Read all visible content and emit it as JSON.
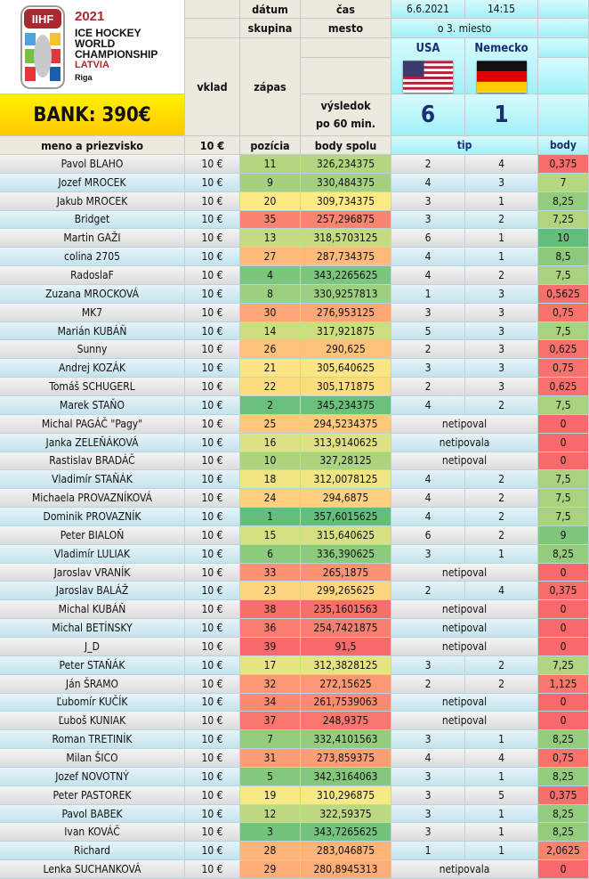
{
  "header": {
    "year": "2021",
    "event_lines": [
      "ICE HOCKEY",
      "WORLD",
      "CHAMPIONSHIP"
    ],
    "country": "LATVIA",
    "city": "Riga",
    "logo_text": "IIHF",
    "bank": "BANK: 390€",
    "datum_label": "dátum",
    "cas_label": "čas",
    "skupina_label": "skupina",
    "mesto_label": "mesto",
    "vklad_label": "vklad",
    "zapas_label": "zápas",
    "vysledok_label": "výsledok",
    "vysledok_label2": "po 60 min.",
    "date": "6.6.2021",
    "time": "14:15",
    "group": "o 3. miesto",
    "team1": "USA",
    "team2": "Nemecko",
    "score1": "6",
    "score2": "1"
  },
  "columns": {
    "name": "meno a priezvisko",
    "vklad": "10 €",
    "pozicia": "pozícia",
    "body_spolu": "body spolu",
    "tip": "tip",
    "body": "body"
  },
  "colors": {
    "green": "#63be7b",
    "yellow": "#ffeb84",
    "red": "#f8696b",
    "header_blue": "#1a2f6e"
  },
  "rows": [
    [
      "Pavol BLAHO",
      "10 €",
      "11",
      "326,234375",
      "2",
      "4",
      "0,375"
    ],
    [
      "Jozef MROCEK",
      "10 €",
      "9",
      "330,484375",
      "4",
      "3",
      "7"
    ],
    [
      "Jakub MROCEK",
      "10 €",
      "20",
      "309,734375",
      "3",
      "1",
      "8,25"
    ],
    [
      "Bridget",
      "10 €",
      "35",
      "257,296875",
      "3",
      "2",
      "7,25"
    ],
    [
      "Martin GAŽI",
      "10 €",
      "13",
      "318,5703125",
      "6",
      "1",
      "10"
    ],
    [
      "colina 2705",
      "10 €",
      "27",
      "287,734375",
      "4",
      "1",
      "8,5"
    ],
    [
      "RadoslaF",
      "10 €",
      "4",
      "343,2265625",
      "4",
      "2",
      "7,5"
    ],
    [
      "Zuzana MROCKOVÁ",
      "10 €",
      "8",
      "330,9257813",
      "1",
      "3",
      "0,5625"
    ],
    [
      "MK7",
      "10 €",
      "30",
      "276,953125",
      "3",
      "3",
      "0,75"
    ],
    [
      "Marián KUBÁŇ",
      "10 €",
      "14",
      "317,921875",
      "5",
      "3",
      "7,5"
    ],
    [
      "Sunny",
      "10 €",
      "26",
      "290,625",
      "2",
      "3",
      "0,625"
    ],
    [
      "Andrej KOZÁK",
      "10 €",
      "21",
      "305,640625",
      "3",
      "3",
      "0,75"
    ],
    [
      "Tomáš SCHUGERL",
      "10 €",
      "22",
      "305,171875",
      "2",
      "3",
      "0,625"
    ],
    [
      "Marek STAŇO",
      "10 €",
      "2",
      "345,234375",
      "4",
      "2",
      "7,5"
    ],
    [
      "Michal PAGÁČ \"Pagy\"",
      "10 €",
      "25",
      "294,5234375",
      "netipoval",
      "",
      "0"
    ],
    [
      "Janka ZELEŇÁKOVÁ",
      "10 €",
      "16",
      "313,9140625",
      "netipovala",
      "",
      "0"
    ],
    [
      "Rastislav BRADÁČ",
      "10 €",
      "10",
      "327,28125",
      "netipoval",
      "",
      "0"
    ],
    [
      "Vladimír STAŇÁK",
      "10 €",
      "18",
      "312,0078125",
      "4",
      "2",
      "7,5"
    ],
    [
      "Michaela PROVAZNÍKOVÁ",
      "10 €",
      "24",
      "294,6875",
      "4",
      "2",
      "7,5"
    ],
    [
      "Dominik PROVAZNÍK",
      "10 €",
      "1",
      "357,6015625",
      "4",
      "2",
      "7,5"
    ],
    [
      "Peter BIALOŇ",
      "10 €",
      "15",
      "315,640625",
      "6",
      "2",
      "9"
    ],
    [
      "Vladimír LULIAK",
      "10 €",
      "6",
      "336,390625",
      "3",
      "1",
      "8,25"
    ],
    [
      "Jaroslav VRANÍK",
      "10 €",
      "33",
      "265,1875",
      "netipoval",
      "",
      "0"
    ],
    [
      "Jaroslav BALÁŽ",
      "10 €",
      "23",
      "299,265625",
      "2",
      "4",
      "0,375"
    ],
    [
      "Michal KUBÁŇ",
      "10 €",
      "38",
      "235,1601563",
      "netipoval",
      "",
      "0"
    ],
    [
      "Michal BETÍNSKY",
      "10 €",
      "36",
      "254,7421875",
      "netipoval",
      "",
      "0"
    ],
    [
      "J_D",
      "10 €",
      "39",
      "91,5",
      "netipoval",
      "",
      "0"
    ],
    [
      "Peter STAŇÁK",
      "10 €",
      "17",
      "312,3828125",
      "3",
      "2",
      "7,25"
    ],
    [
      "Ján ŠRAMO",
      "10 €",
      "32",
      "272,15625",
      "2",
      "2",
      "1,125"
    ],
    [
      "Ľubomír KUČÍK",
      "10 €",
      "34",
      "261,7539063",
      "netipoval",
      "",
      "0"
    ],
    [
      "Ľuboš KUNIAK",
      "10 €",
      "37",
      "248,9375",
      "netipoval",
      "",
      "0"
    ],
    [
      "Roman TRETINÍK",
      "10 €",
      "7",
      "332,4101563",
      "3",
      "1",
      "8,25"
    ],
    [
      "Milan ŠICO",
      "10 €",
      "31",
      "273,859375",
      "4",
      "4",
      "0,75"
    ],
    [
      "Jozef NOVOTNÝ",
      "10 €",
      "5",
      "342,3164063",
      "3",
      "1",
      "8,25"
    ],
    [
      "Peter PASTOREK",
      "10 €",
      "19",
      "310,296875",
      "3",
      "5",
      "0,375"
    ],
    [
      "Pavol BABEK",
      "10 €",
      "12",
      "322,59375",
      "3",
      "1",
      "8,25"
    ],
    [
      "Ivan KOVÁČ",
      "10 €",
      "3",
      "343,7265625",
      "3",
      "1",
      "8,25"
    ],
    [
      "Richard",
      "10 €",
      "28",
      "283,046875",
      "1",
      "1",
      "2,0625"
    ],
    [
      "Lenka SUCHANKOVÁ",
      "10 €",
      "29",
      "280,8945313",
      "netipovala",
      "",
      "0"
    ]
  ]
}
